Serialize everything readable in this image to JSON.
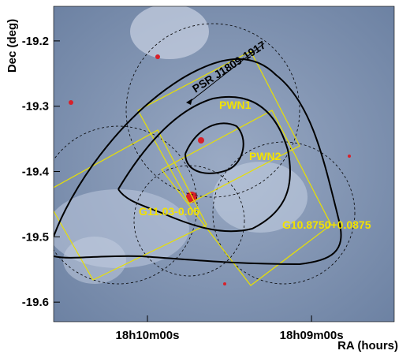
{
  "chart_data": {
    "type": "skymap",
    "xlabel": "RA (hours)",
    "ylabel": "Dec (deg)",
    "xlim": [
      18.1762,
      18.1416
    ],
    "ylim": [
      -19.63,
      -19.147
    ],
    "xticks": [
      {
        "value": 18.16667,
        "label": "18h10m00s"
      },
      {
        "value": 18.15,
        "label": "18h09m00s"
      }
    ],
    "yticks": [
      -19.2,
      -19.3,
      -19.4,
      -19.5,
      -19.6
    ],
    "annotations": [
      "PSR J1809-1917",
      "PWN1",
      "PWN2",
      "G11.03-0.05",
      "G10.8750+0.0875"
    ]
  }
}
